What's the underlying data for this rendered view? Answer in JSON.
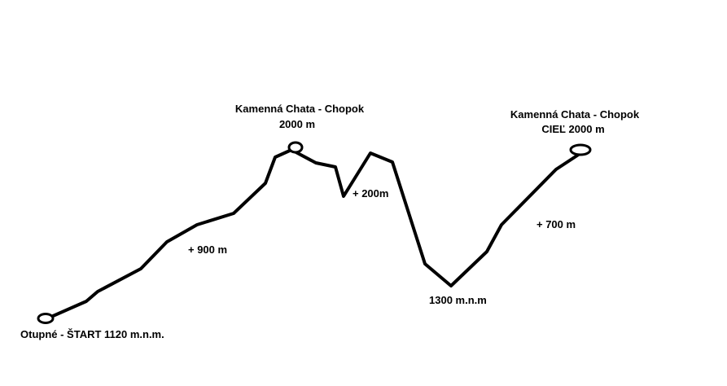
{
  "profile": {
    "line_color": "#000000",
    "background": "#ffffff"
  },
  "labels": {
    "start": "Otupné - ŠTART  1120 m.n.m.",
    "peak1_name": "Kamenná Chata - Chopok",
    "peak1_alt": "2000 m",
    "finish_name": "Kamenná Chata - Chopok",
    "finish_alt": "CIEĽ 2000 m",
    "gain1": "+ 900 m",
    "gain2": "+ 200m",
    "valley": "1300 m.n.m",
    "gain3": "+ 700 m"
  }
}
